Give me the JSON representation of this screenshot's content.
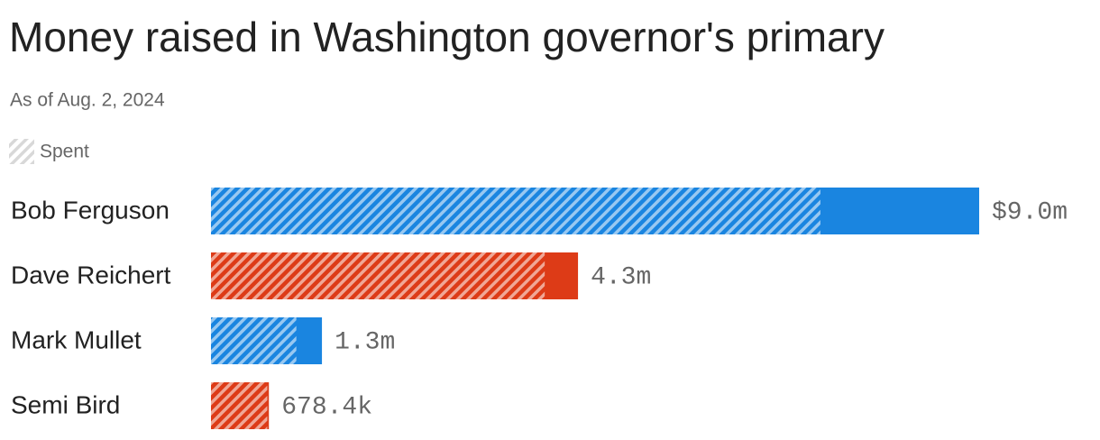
{
  "chart_data": {
    "type": "bar",
    "title": "Money raised in Washington governor's primary",
    "subtitle": "As of Aug. 2, 2024",
    "categories": [
      "Bob Ferguson",
      "Dave Reichert",
      "Mark Mullet",
      "Semi Bird"
    ],
    "values": [
      9.0,
      4.3,
      1.3,
      0.6784
    ],
    "value_labels": [
      "$9.0m",
      "4.3m",
      "1.3m",
      "678.4k"
    ],
    "colors": [
      "#1a85e0",
      "#dd3b17",
      "#1a85e0",
      "#dd3b17"
    ],
    "spent": {
      "name": "Spent",
      "values": [
        7.14,
        3.91,
        1.0,
        0.66
      ]
    }
  }
}
